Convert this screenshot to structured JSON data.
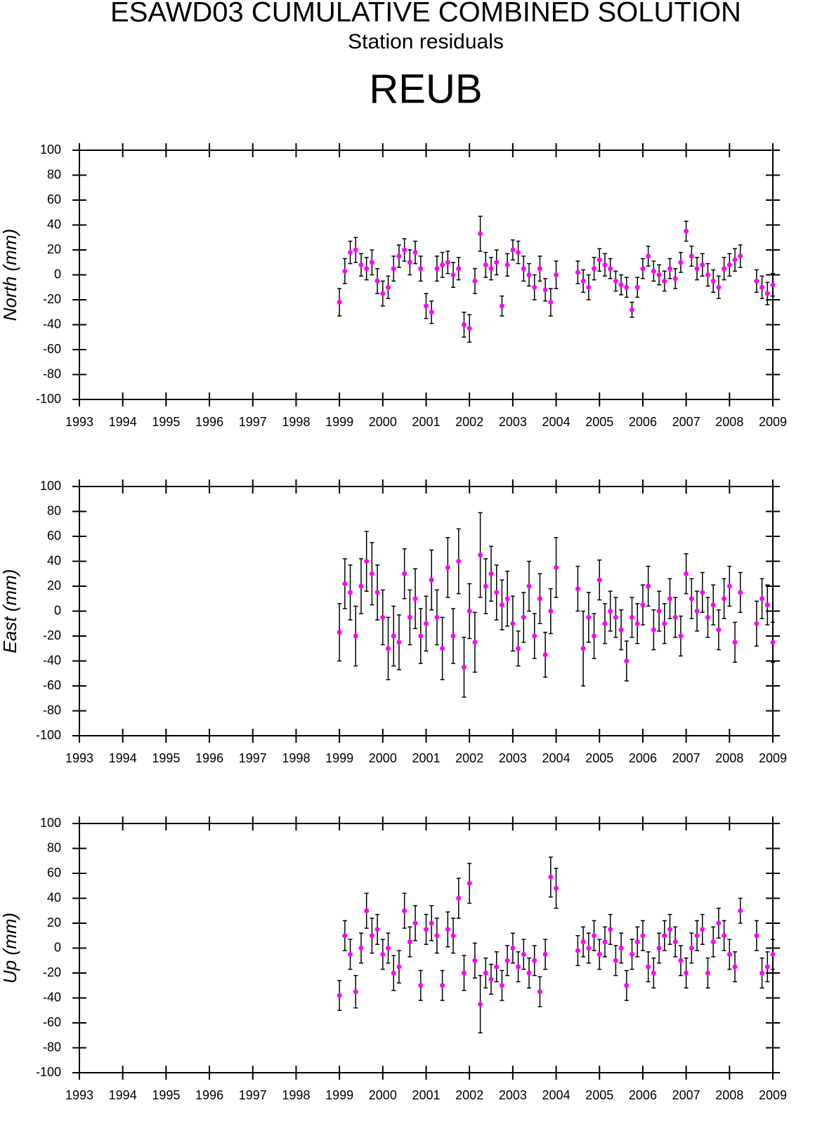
{
  "header": {
    "title": "ESAWD03 CUMULATIVE COMBINED SOLUTION",
    "subtitle": "Station residuals",
    "station": "REUB"
  },
  "chart_data": [
    {
      "type": "scatter",
      "ylabel": "North (mm)",
      "color": "#ff00ff",
      "errorbar_color": "#000000",
      "xlim": [
        1993,
        2009
      ],
      "xticks": [
        1993,
        1994,
        1995,
        1996,
        1997,
        1998,
        1999,
        2000,
        2001,
        2002,
        2003,
        2004,
        2005,
        2006,
        2007,
        2008,
        2009
      ],
      "ylim": [
        -100,
        100
      ],
      "yticks": [
        -100,
        -80,
        -60,
        -40,
        -20,
        0,
        20,
        40,
        60,
        80,
        100
      ],
      "x": [
        1999,
        1999.125,
        1999.25,
        1999.375,
        1999.5,
        1999.625,
        1999.75,
        1999.875,
        2000,
        2000.125,
        2000.25,
        2000.375,
        2000.5,
        2000.625,
        2000.75,
        2000.875,
        2001,
        2001.125,
        2001.25,
        2001.375,
        2001.5,
        2001.625,
        2001.75,
        2001.875,
        2002,
        2002.125,
        2002.25,
        2002.375,
        2002.5,
        2002.625,
        2002.75,
        2002.875,
        2003,
        2003.125,
        2003.25,
        2003.375,
        2003.5,
        2003.625,
        2003.75,
        2003.875,
        2004,
        2004.5,
        2004.625,
        2004.75,
        2004.875,
        2005,
        2005.125,
        2005.25,
        2005.375,
        2005.5,
        2005.625,
        2005.75,
        2005.875,
        2006,
        2006.125,
        2006.25,
        2006.375,
        2006.5,
        2006.625,
        2006.75,
        2006.875,
        2007,
        2007.125,
        2007.25,
        2007.375,
        2007.5,
        2007.625,
        2007.75,
        2007.875,
        2008,
        2008.125,
        2008.25,
        2008.625,
        2008.75,
        2008.875,
        2009
      ],
      "values": [
        -22,
        3,
        18,
        20,
        8,
        5,
        10,
        -5,
        -15,
        -10,
        5,
        15,
        20,
        10,
        18,
        5,
        -25,
        -30,
        5,
        8,
        10,
        0,
        5,
        -40,
        -43,
        -5,
        33,
        8,
        5,
        10,
        -25,
        8,
        20,
        18,
        5,
        0,
        -10,
        5,
        -12,
        -22,
        0,
        2,
        -5,
        -10,
        5,
        12,
        8,
        5,
        -5,
        -8,
        -10,
        -28,
        -10,
        5,
        15,
        3,
        0,
        -5,
        5,
        -3,
        10,
        35,
        15,
        5,
        8,
        0,
        -5,
        -10,
        5,
        8,
        12,
        15,
        -5,
        -10,
        -15,
        -8
      ],
      "errors": [
        11,
        10,
        9,
        10,
        9,
        9,
        10,
        10,
        10,
        9,
        10,
        9,
        9,
        10,
        9,
        10,
        10,
        9,
        10,
        10,
        9,
        10,
        9,
        10,
        11,
        10,
        14,
        10,
        9,
        10,
        8,
        9,
        8,
        9,
        10,
        9,
        10,
        10,
        9,
        11,
        11,
        9,
        9,
        10,
        9,
        9,
        9,
        8,
        8,
        8,
        8,
        6,
        8,
        8,
        8,
        8,
        8,
        8,
        8,
        8,
        8,
        8,
        8,
        9,
        9,
        9,
        9,
        9,
        9,
        9,
        9,
        9,
        9,
        9,
        9,
        9
      ]
    },
    {
      "type": "scatter",
      "ylabel": "East (mm)",
      "color": "#ff00ff",
      "errorbar_color": "#000000",
      "xlim": [
        1993,
        2009
      ],
      "xticks": [
        1993,
        1994,
        1995,
        1996,
        1997,
        1998,
        1999,
        2000,
        2001,
        2002,
        2003,
        2004,
        2005,
        2006,
        2007,
        2008,
        2009
      ],
      "ylim": [
        -100,
        100
      ],
      "yticks": [
        -100,
        -80,
        -60,
        -40,
        -20,
        0,
        20,
        40,
        60,
        80,
        100
      ],
      "x": [
        1999,
        1999.125,
        1999.25,
        1999.375,
        1999.5,
        1999.625,
        1999.75,
        1999.875,
        2000,
        2000.125,
        2000.25,
        2000.375,
        2000.5,
        2000.625,
        2000.75,
        2000.875,
        2001,
        2001.125,
        2001.25,
        2001.375,
        2001.5,
        2001.625,
        2001.75,
        2001.875,
        2002,
        2002.125,
        2002.25,
        2002.375,
        2002.5,
        2002.625,
        2002.75,
        2002.875,
        2003,
        2003.125,
        2003.25,
        2003.375,
        2003.5,
        2003.625,
        2003.75,
        2003.875,
        2004,
        2004.5,
        2004.625,
        2004.75,
        2004.875,
        2005,
        2005.125,
        2005.25,
        2005.375,
        2005.5,
        2005.625,
        2005.75,
        2005.875,
        2006,
        2006.125,
        2006.25,
        2006.375,
        2006.5,
        2006.625,
        2006.75,
        2006.875,
        2007,
        2007.125,
        2007.25,
        2007.375,
        2007.5,
        2007.625,
        2007.75,
        2007.875,
        2008,
        2008.125,
        2008.25,
        2008.625,
        2008.75,
        2008.875,
        2009
      ],
      "values": [
        -17,
        22,
        15,
        -20,
        20,
        40,
        30,
        15,
        -5,
        -30,
        -20,
        -25,
        30,
        -5,
        10,
        -20,
        -10,
        25,
        -5,
        -30,
        35,
        -20,
        40,
        -45,
        0,
        -25,
        45,
        20,
        30,
        15,
        5,
        10,
        -10,
        -30,
        -5,
        20,
        -20,
        10,
        -35,
        0,
        35,
        18,
        -30,
        -5,
        -20,
        25,
        -10,
        0,
        -5,
        -15,
        -40,
        -5,
        -10,
        5,
        20,
        -15,
        0,
        -10,
        10,
        -5,
        -20,
        30,
        10,
        0,
        15,
        -5,
        5,
        -15,
        10,
        20,
        -25,
        15,
        -10,
        10,
        5,
        -25
      ],
      "errors": [
        23,
        20,
        22,
        24,
        22,
        24,
        25,
        22,
        22,
        25,
        24,
        22,
        20,
        22,
        24,
        22,
        22,
        24,
        22,
        25,
        24,
        22,
        26,
        24,
        22,
        24,
        34,
        22,
        22,
        22,
        20,
        22,
        22,
        14,
        20,
        20,
        18,
        20,
        18,
        18,
        24,
        18,
        30,
        20,
        18,
        16,
        16,
        16,
        16,
        16,
        16,
        16,
        16,
        16,
        16,
        16,
        16,
        16,
        16,
        16,
        16,
        16,
        16,
        16,
        16,
        16,
        16,
        16,
        16,
        16,
        16,
        16,
        18,
        16,
        16,
        16
      ]
    },
    {
      "type": "scatter",
      "ylabel": "Up (mm)",
      "color": "#ff00ff",
      "errorbar_color": "#000000",
      "xlim": [
        1993,
        2009
      ],
      "xticks": [
        1993,
        1994,
        1995,
        1996,
        1997,
        1998,
        1999,
        2000,
        2001,
        2002,
        2003,
        2004,
        2005,
        2006,
        2007,
        2008,
        2009
      ],
      "ylim": [
        -100,
        100
      ],
      "yticks": [
        -100,
        -80,
        -60,
        -40,
        -20,
        0,
        20,
        40,
        60,
        80,
        100
      ],
      "x": [
        1999,
        1999.125,
        1999.25,
        1999.375,
        1999.5,
        1999.625,
        1999.75,
        1999.875,
        2000,
        2000.125,
        2000.25,
        2000.375,
        2000.5,
        2000.625,
        2000.75,
        2000.875,
        2001,
        2001.125,
        2001.25,
        2001.375,
        2001.5,
        2001.625,
        2001.75,
        2001.875,
        2002,
        2002.125,
        2002.25,
        2002.375,
        2002.5,
        2002.625,
        2002.75,
        2002.875,
        2003,
        2003.125,
        2003.25,
        2003.375,
        2003.5,
        2003.625,
        2003.75,
        2003.875,
        2004,
        2004.5,
        2004.625,
        2004.75,
        2004.875,
        2005,
        2005.125,
        2005.25,
        2005.375,
        2005.5,
        2005.625,
        2005.75,
        2005.875,
        2006,
        2006.125,
        2006.25,
        2006.375,
        2006.5,
        2006.625,
        2006.75,
        2006.875,
        2007,
        2007.125,
        2007.25,
        2007.375,
        2007.5,
        2007.625,
        2007.75,
        2007.875,
        2008,
        2008.125,
        2008.25,
        2008.625,
        2008.75,
        2008.875,
        2009
      ],
      "values": [
        -38,
        10,
        -5,
        -35,
        0,
        30,
        10,
        15,
        -5,
        0,
        -20,
        -15,
        30,
        5,
        20,
        -30,
        15,
        20,
        10,
        -30,
        15,
        10,
        40,
        -20,
        52,
        -10,
        -45,
        -20,
        -25,
        -15,
        -30,
        -10,
        0,
        -15,
        -5,
        -20,
        -10,
        -35,
        -5,
        57,
        48,
        -2,
        5,
        0,
        10,
        -5,
        5,
        15,
        -10,
        0,
        -30,
        -5,
        5,
        10,
        -15,
        -20,
        0,
        10,
        15,
        5,
        -10,
        -20,
        0,
        10,
        15,
        -20,
        5,
        20,
        10,
        -5,
        -15,
        30,
        10,
        -20,
        -15,
        -5
      ],
      "errors": [
        12,
        12,
        12,
        13,
        12,
        14,
        14,
        12,
        12,
        12,
        14,
        13,
        14,
        12,
        14,
        12,
        12,
        14,
        14,
        12,
        14,
        14,
        16,
        14,
        16,
        14,
        23,
        12,
        12,
        12,
        12,
        12,
        12,
        12,
        12,
        12,
        12,
        12,
        12,
        16,
        16,
        12,
        12,
        12,
        12,
        12,
        12,
        12,
        12,
        12,
        12,
        12,
        12,
        12,
        12,
        12,
        12,
        12,
        12,
        12,
        12,
        12,
        12,
        12,
        12,
        12,
        12,
        12,
        12,
        12,
        12,
        10,
        12,
        12,
        12,
        12
      ]
    }
  ]
}
